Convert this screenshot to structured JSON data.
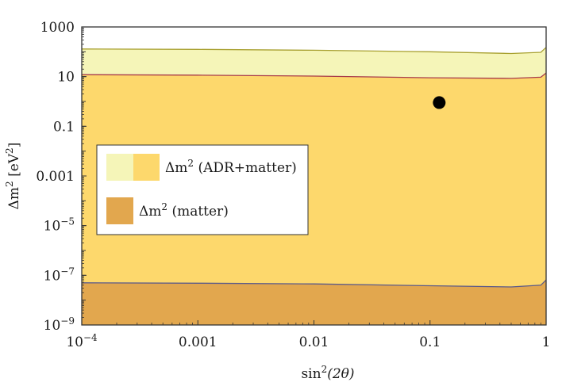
{
  "chart_data": {
    "type": "area",
    "x_scale": "log",
    "y_scale": "log",
    "xlim": [
      0.0001,
      1
    ],
    "ylim": [
      1e-09,
      1000
    ],
    "xlabel": {
      "base": "sin",
      "sup": "2",
      "rest": "(2θ)"
    },
    "ylabel": {
      "prefix": "Δm",
      "sup": "2",
      "middle": " [eV",
      "sup2": "2",
      "suffix": "]"
    },
    "x_ticks": [
      {
        "value": 0.0001,
        "label": "10",
        "sup": "−4"
      },
      {
        "value": 0.001,
        "label": "0.001",
        "sup": ""
      },
      {
        "value": 0.01,
        "label": "0.01",
        "sup": ""
      },
      {
        "value": 0.1,
        "label": "0.1",
        "sup": ""
      },
      {
        "value": 1,
        "label": "1",
        "sup": ""
      }
    ],
    "y_ticks": [
      {
        "value": 1000,
        "label": "1000",
        "sup": ""
      },
      {
        "value": 10,
        "label": "10",
        "sup": ""
      },
      {
        "value": 0.1,
        "label": "0.1",
        "sup": ""
      },
      {
        "value": 0.001,
        "label": "0.001",
        "sup": ""
      },
      {
        "value": 1e-05,
        "label": "10",
        "sup": "−5"
      },
      {
        "value": 1e-07,
        "label": "10",
        "sup": "−7"
      },
      {
        "value": 1e-09,
        "label": "10",
        "sup": "−9"
      }
    ],
    "series": [
      {
        "name": "Δm² (ADR+matter)",
        "role": "upper band",
        "fill": "#f5f5b8",
        "stroke": "#a8a030",
        "x": [
          0.0001,
          0.001,
          0.01,
          0.1,
          0.5,
          0.9,
          1
        ],
        "y_low": [
          1e-09,
          1e-09,
          1e-09,
          1e-09,
          1e-09,
          1e-09,
          1e-09
        ],
        "y_high": [
          130,
          125,
          115,
          100,
          85,
          95,
          150
        ]
      },
      {
        "name": "Δm² (ADR+matter)",
        "role": "lower band",
        "fill": "#fdd86c",
        "stroke": "#a83a4a",
        "x": [
          0.0001,
          0.001,
          0.01,
          0.1,
          0.5,
          0.9,
          1
        ],
        "y_low": [
          1e-09,
          1e-09,
          1e-09,
          1e-09,
          1e-09,
          1e-09,
          1e-09
        ],
        "y_high": [
          12,
          11.5,
          10.5,
          9,
          8.5,
          9.5,
          14
        ]
      },
      {
        "name": "Δm² (matter)",
        "fill": "#e2a74e",
        "stroke": "#5a5a8a",
        "x": [
          0.0001,
          0.001,
          0.01,
          0.1,
          0.5,
          0.9,
          1
        ],
        "y_low": [
          1e-09,
          1e-09,
          1e-09,
          1e-09,
          1e-09,
          1e-09,
          1e-09
        ],
        "y_high": [
          5e-08,
          4.8e-08,
          4.5e-08,
          3.8e-08,
          3.4e-08,
          4e-08,
          6.5e-08
        ]
      }
    ],
    "points": [
      {
        "x": 0.12,
        "y": 0.9,
        "color": "#000000"
      }
    ],
    "legend": {
      "placement": "center-left",
      "entries": [
        {
          "prefix": "Δm",
          "sup": "2",
          "suffix": " (ADR+matter)",
          "swatches": [
            "#f5f5b8",
            "#fdd86c"
          ]
        },
        {
          "prefix": "Δm",
          "sup": "2",
          "suffix": " (matter)",
          "swatches": [
            "#e2a74e"
          ]
        }
      ]
    },
    "grid": false
  }
}
